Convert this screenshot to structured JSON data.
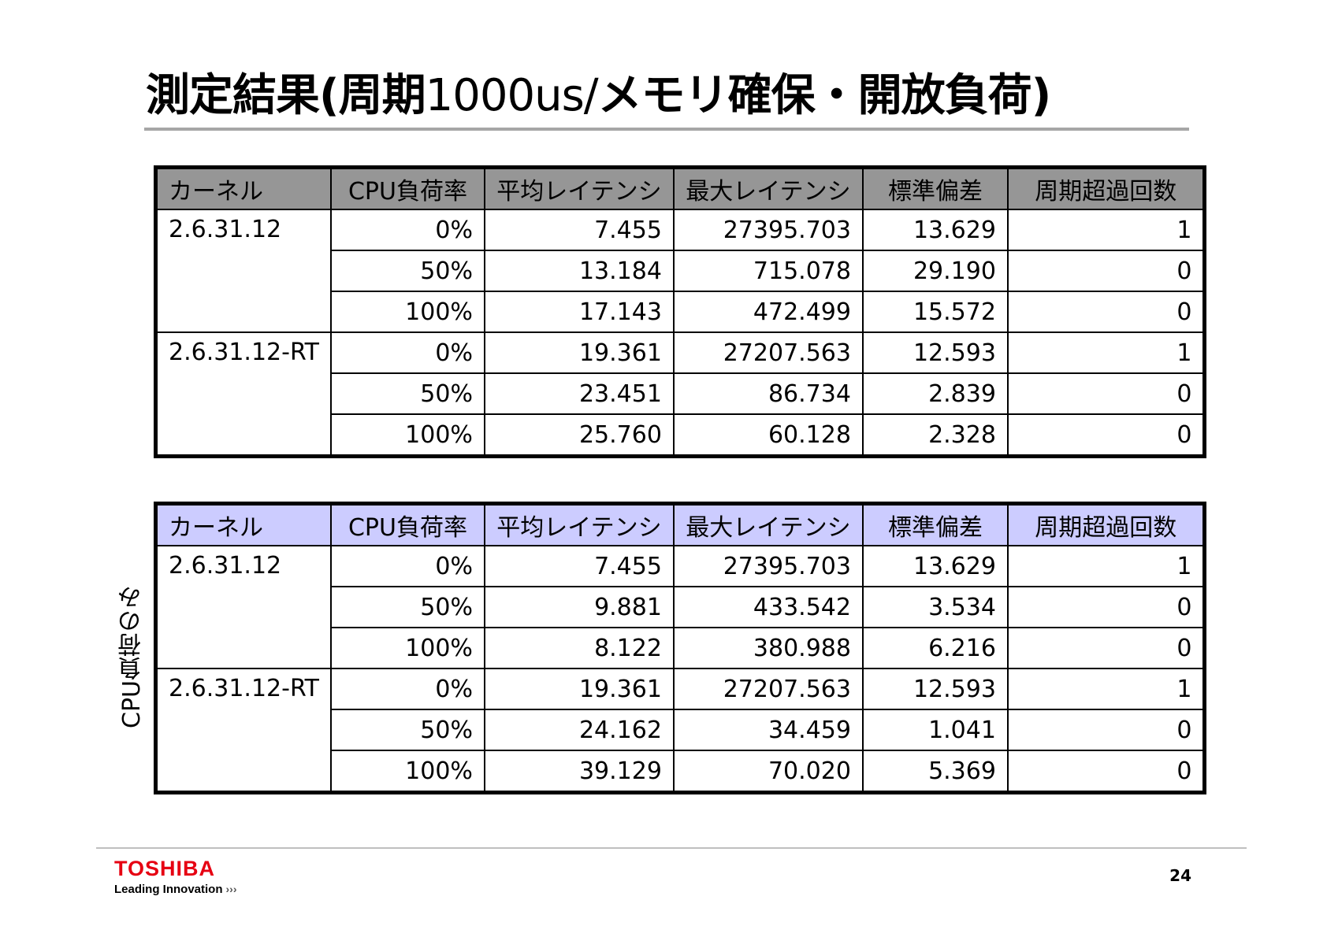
{
  "title": {
    "part1": "測定結果(周期",
    "part2": "1000us/",
    "part3": "メモリ確保・開放負荷)"
  },
  "headers": [
    "カーネル",
    "CPU負荷率",
    "平均レイテンシ",
    "最大レイテンシ",
    "標準偏差",
    "周期超過回数"
  ],
  "table1": {
    "header_color": "#969696",
    "groups": [
      {
        "kernel": "2.6.31.12",
        "rows": [
          [
            "0%",
            "7.455",
            "27395.703",
            "13.629",
            "1"
          ],
          [
            "50%",
            "13.184",
            "715.078",
            "29.190",
            "0"
          ],
          [
            "100%",
            "17.143",
            "472.499",
            "15.572",
            "0"
          ]
        ]
      },
      {
        "kernel": "2.6.31.12-RT",
        "rows": [
          [
            "0%",
            "19.361",
            "27207.563",
            "12.593",
            "1"
          ],
          [
            "50%",
            "23.451",
            "86.734",
            "2.839",
            "0"
          ],
          [
            "100%",
            "25.760",
            "60.128",
            "2.328",
            "0"
          ]
        ]
      }
    ]
  },
  "table2": {
    "header_color": "#ccccff",
    "side_label": "CPU負荷のみ",
    "groups": [
      {
        "kernel": "2.6.31.12",
        "rows": [
          [
            "0%",
            "7.455",
            "27395.703",
            "13.629",
            "1"
          ],
          [
            "50%",
            "9.881",
            "433.542",
            "3.534",
            "0"
          ],
          [
            "100%",
            "8.122",
            "380.988",
            "6.216",
            "0"
          ]
        ]
      },
      {
        "kernel": "2.6.31.12-RT",
        "rows": [
          [
            "0%",
            "19.361",
            "27207.563",
            "12.593",
            "1"
          ],
          [
            "50%",
            "24.162",
            "34.459",
            "1.041",
            "0"
          ],
          [
            "100%",
            "39.129",
            "70.020",
            "5.369",
            "0"
          ]
        ]
      }
    ]
  },
  "footer": {
    "brand": "TOSHIBA",
    "tagline": "Leading Innovation",
    "tagline_icon": "triple-chevron-icon",
    "brand_color": "#e60012",
    "page_number": "24"
  }
}
